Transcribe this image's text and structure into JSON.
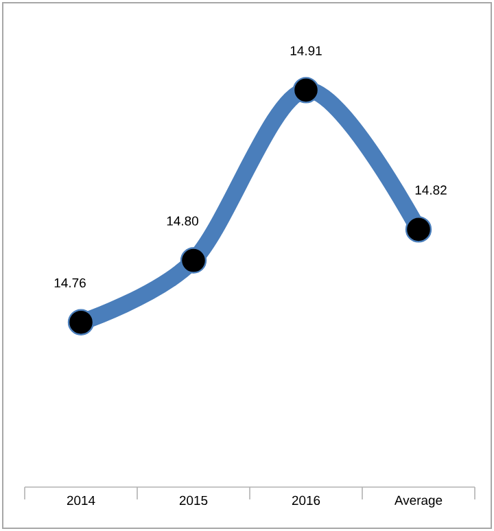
{
  "chart_data": {
    "type": "line",
    "categories": [
      "2014",
      "2015",
      "2016",
      "Average"
    ],
    "series": [
      {
        "color": "#4a7ebb",
        "values": [
          14.76,
          14.8,
          14.91,
          14.82
        ],
        "value_labels": [
          "14.76",
          "14.80",
          "14.91",
          "14.82"
        ]
      }
    ],
    "marker": "circle",
    "line_style": "solid"
  }
}
